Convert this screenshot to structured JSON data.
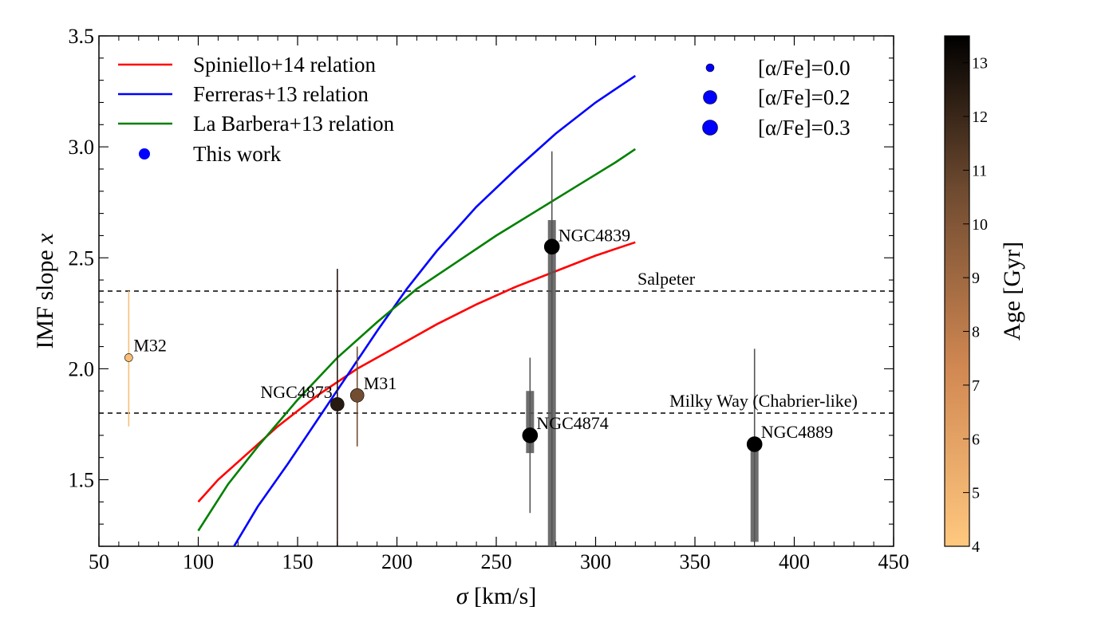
{
  "chart_data": {
    "type": "scatter",
    "title": "",
    "xlabel_symbol": "σ",
    "xlabel_rest": " [km/s]",
    "ylabel_main": "IMF slope ",
    "ylabel_var": "x",
    "xlim": [
      50,
      450
    ],
    "ylim": [
      1.2,
      3.5
    ],
    "xticks": [
      50,
      100,
      150,
      200,
      250,
      300,
      350,
      400,
      450
    ],
    "yticks": [
      1.5,
      2.0,
      2.5,
      3.0,
      3.5
    ],
    "colorbar": {
      "label": "Age [Gyr]",
      "range": [
        4,
        13.5
      ],
      "ticks": [
        4,
        5,
        6,
        7,
        8,
        9,
        10,
        11,
        12,
        13
      ]
    },
    "reference_lines": [
      {
        "name": "Salpeter",
        "y": 2.35
      },
      {
        "name": "Milky Way (Chabrier-like)",
        "y": 1.8
      }
    ],
    "relations": [
      {
        "name": "Spiniello+14 relation",
        "color": "#ff0000",
        "x": [
          100,
          110,
          120,
          140,
          160,
          180,
          200,
          220,
          240,
          260,
          280,
          300,
          320
        ],
        "y": [
          1.4,
          1.5,
          1.58,
          1.74,
          1.88,
          2.0,
          2.1,
          2.2,
          2.29,
          2.37,
          2.44,
          2.51,
          2.57
        ]
      },
      {
        "name": "Ferreras+13 relation",
        "color": "#0000ff",
        "x": [
          118,
          130,
          145,
          160,
          175,
          190,
          205,
          220,
          240,
          260,
          280,
          300,
          320
        ],
        "y": [
          1.2,
          1.38,
          1.57,
          1.77,
          1.97,
          2.17,
          2.36,
          2.53,
          2.73,
          2.9,
          3.06,
          3.2,
          3.32
        ]
      },
      {
        "name": "La Barbera+13 relation",
        "color": "#008000",
        "x": [
          100,
          115,
          130,
          150,
          170,
          190,
          210,
          230,
          250,
          270,
          290,
          310,
          320
        ],
        "y": [
          1.27,
          1.48,
          1.65,
          1.86,
          2.05,
          2.21,
          2.36,
          2.48,
          2.6,
          2.71,
          2.82,
          2.93,
          2.99
        ]
      }
    ],
    "this_work_label": "This work",
    "alpha_legend": [
      {
        "label": "[α/Fe]=0.0",
        "alpha": 0.0
      },
      {
        "label": "[α/Fe]=0.2",
        "alpha": 0.2
      },
      {
        "label": "[α/Fe]=0.3",
        "alpha": 0.3
      }
    ],
    "galaxies": [
      {
        "name": "M32",
        "sigma": 65,
        "x_slope": 2.05,
        "err_low": 1.74,
        "err_high": 2.35,
        "age": 4.5,
        "alpha": 0.0
      },
      {
        "name": "NGC4873",
        "sigma": 170,
        "x_slope": 1.84,
        "err_low": 1.2,
        "err_high": 2.45,
        "age": 12.5,
        "alpha": 0.2
      },
      {
        "name": "M31",
        "sigma": 180,
        "x_slope": 1.88,
        "err_low": 1.65,
        "err_high": 2.1,
        "age": 10.5,
        "alpha": 0.2
      },
      {
        "name": "NGC4839",
        "sigma": 278,
        "x_slope": 2.55,
        "err_low": 1.2,
        "err_high": 2.98,
        "box_low": 1.2,
        "box_high": 2.67,
        "age": 13.5,
        "alpha": 0.3
      },
      {
        "name": "NGC4874",
        "sigma": 267,
        "x_slope": 1.7,
        "err_low": 1.35,
        "err_high": 2.05,
        "box_low": 1.62,
        "box_high": 1.9,
        "age": 13.5,
        "alpha": 0.3
      },
      {
        "name": "NGC4889",
        "sigma": 380,
        "x_slope": 1.66,
        "err_low": 1.22,
        "err_high": 2.09,
        "box_low": 1.22,
        "box_high": 1.66,
        "age": 13.5,
        "alpha": 0.3
      }
    ]
  }
}
